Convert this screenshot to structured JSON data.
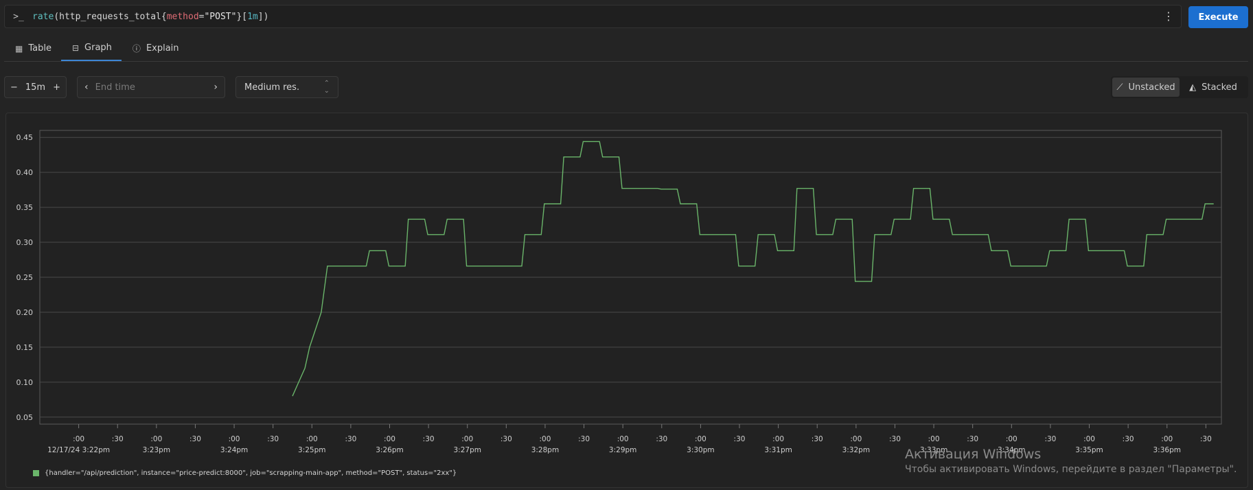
{
  "query": {
    "prompt_icon": "terminal-prompt-icon",
    "fn": "rate",
    "open1": "(",
    "metric": "http_requests_total",
    "brace_open": "{",
    "label_name": "method",
    "eq": "=",
    "label_value": "\"POST\"",
    "brace_close": "}",
    "bracket_open": "[",
    "duration": "1m",
    "bracket_close": "])",
    "menu_icon": "kebab-menu-icon"
  },
  "execute_label": "Execute",
  "tabs": [
    {
      "label": "Table",
      "icon": "table-icon"
    },
    {
      "label": "Graph",
      "icon": "graph-icon",
      "active": true
    },
    {
      "label": "Explain",
      "icon": "info-icon"
    }
  ],
  "range": {
    "minus": "−",
    "value": "15m",
    "plus": "+"
  },
  "endtime": {
    "placeholder": "End time",
    "prev": "‹",
    "next": "›"
  },
  "resolution": {
    "value": "Medium res."
  },
  "stack_modes": [
    {
      "label": "Unstacked",
      "icon": "unstacked-chart-icon",
      "active": true
    },
    {
      "label": "Stacked",
      "icon": "stacked-chart-icon",
      "active": false
    }
  ],
  "chart_data": {
    "type": "line",
    "ylim": [
      0.04,
      0.46
    ],
    "y_ticks": [
      0.05,
      0.1,
      0.15,
      0.2,
      0.25,
      0.3,
      0.35,
      0.4,
      0.45
    ],
    "y_tick_labels": [
      "0.05",
      "0.10",
      "0.15",
      "0.20",
      "0.25",
      "0.30",
      "0.35",
      "0.40",
      "0.45"
    ],
    "x_range_minutes": [
      -0.5,
      14.7
    ],
    "x_ticks": [
      {
        "m": 0.0,
        "top": ":00",
        "bottom": "12/17/24 3:22pm"
      },
      {
        "m": 0.5,
        "top": ":30",
        "bottom": ""
      },
      {
        "m": 1.0,
        "top": ":00",
        "bottom": "3:23pm"
      },
      {
        "m": 1.5,
        "top": ":30",
        "bottom": ""
      },
      {
        "m": 2.0,
        "top": ":00",
        "bottom": "3:24pm"
      },
      {
        "m": 2.5,
        "top": ":30",
        "bottom": ""
      },
      {
        "m": 3.0,
        "top": ":00",
        "bottom": "3:25pm"
      },
      {
        "m": 3.5,
        "top": ":30",
        "bottom": ""
      },
      {
        "m": 4.0,
        "top": ":00",
        "bottom": "3:26pm"
      },
      {
        "m": 4.5,
        "top": ":30",
        "bottom": ""
      },
      {
        "m": 5.0,
        "top": ":00",
        "bottom": "3:27pm"
      },
      {
        "m": 5.5,
        "top": ":30",
        "bottom": ""
      },
      {
        "m": 6.0,
        "top": ":00",
        "bottom": "3:28pm"
      },
      {
        "m": 6.5,
        "top": ":30",
        "bottom": ""
      },
      {
        "m": 7.0,
        "top": ":00",
        "bottom": "3:29pm"
      },
      {
        "m": 7.5,
        "top": ":30",
        "bottom": ""
      },
      {
        "m": 8.0,
        "top": ":00",
        "bottom": "3:30pm"
      },
      {
        "m": 8.5,
        "top": ":30",
        "bottom": ""
      },
      {
        "m": 9.0,
        "top": ":00",
        "bottom": "3:31pm"
      },
      {
        "m": 9.5,
        "top": ":30",
        "bottom": ""
      },
      {
        "m": 10.0,
        "top": ":00",
        "bottom": "3:32pm"
      },
      {
        "m": 10.5,
        "top": ":30",
        "bottom": ""
      },
      {
        "m": 11.0,
        "top": ":00",
        "bottom": "3:33pm"
      },
      {
        "m": 11.5,
        "top": ":30",
        "bottom": ""
      },
      {
        "m": 12.0,
        "top": ":00",
        "bottom": "3:34pm"
      },
      {
        "m": 12.5,
        "top": ":30",
        "bottom": ""
      },
      {
        "m": 13.0,
        "top": ":00",
        "bottom": "3:35pm"
      },
      {
        "m": 13.5,
        "top": ":30",
        "bottom": ""
      },
      {
        "m": 14.0,
        "top": ":00",
        "bottom": "3:36pm"
      },
      {
        "m": 14.5,
        "top": ":30",
        "bottom": ""
      }
    ],
    "series": [
      {
        "name": "{handler=\"/api/prediction\", instance=\"price-predict:8000\", job=\"scrapping-main-app\", method=\"POST\", status=\"2xx\"}",
        "color": "#6ab56a",
        "points": [
          [
            2.75,
            0.08
          ],
          [
            2.83,
            0.1
          ],
          [
            2.91,
            0.12
          ],
          [
            2.97,
            0.15
          ],
          [
            3.12,
            0.2
          ],
          [
            3.2,
            0.266
          ],
          [
            3.7,
            0.266
          ],
          [
            3.74,
            0.288
          ],
          [
            3.95,
            0.288
          ],
          [
            3.99,
            0.266
          ],
          [
            4.2,
            0.266
          ],
          [
            4.24,
            0.333
          ],
          [
            4.45,
            0.333
          ],
          [
            4.49,
            0.311
          ],
          [
            4.7,
            0.311
          ],
          [
            4.74,
            0.333
          ],
          [
            4.95,
            0.333
          ],
          [
            4.99,
            0.266
          ],
          [
            5.7,
            0.266
          ],
          [
            5.74,
            0.311
          ],
          [
            5.95,
            0.311
          ],
          [
            5.99,
            0.355
          ],
          [
            6.2,
            0.355
          ],
          [
            6.24,
            0.422
          ],
          [
            6.45,
            0.422
          ],
          [
            6.49,
            0.444
          ],
          [
            6.7,
            0.444
          ],
          [
            6.74,
            0.422
          ],
          [
            6.95,
            0.422
          ],
          [
            6.99,
            0.377
          ],
          [
            7.45,
            0.377
          ],
          [
            7.49,
            0.376
          ],
          [
            7.7,
            0.376
          ],
          [
            7.74,
            0.355
          ],
          [
            7.95,
            0.355
          ],
          [
            7.99,
            0.311
          ],
          [
            8.45,
            0.311
          ],
          [
            8.49,
            0.266
          ],
          [
            8.7,
            0.266
          ],
          [
            8.74,
            0.311
          ],
          [
            8.95,
            0.311
          ],
          [
            8.99,
            0.288
          ],
          [
            9.2,
            0.288
          ],
          [
            9.24,
            0.377
          ],
          [
            9.45,
            0.377
          ],
          [
            9.49,
            0.311
          ],
          [
            9.7,
            0.311
          ],
          [
            9.74,
            0.333
          ],
          [
            9.95,
            0.333
          ],
          [
            9.99,
            0.244
          ],
          [
            10.2,
            0.244
          ],
          [
            10.24,
            0.311
          ],
          [
            10.45,
            0.311
          ],
          [
            10.49,
            0.333
          ],
          [
            10.7,
            0.333
          ],
          [
            10.74,
            0.377
          ],
          [
            10.95,
            0.377
          ],
          [
            10.99,
            0.333
          ],
          [
            11.2,
            0.333
          ],
          [
            11.24,
            0.311
          ],
          [
            11.7,
            0.311
          ],
          [
            11.74,
            0.288
          ],
          [
            11.95,
            0.288
          ],
          [
            11.99,
            0.266
          ],
          [
            12.45,
            0.266
          ],
          [
            12.49,
            0.288
          ],
          [
            12.7,
            0.288
          ],
          [
            12.74,
            0.333
          ],
          [
            12.95,
            0.333
          ],
          [
            12.99,
            0.288
          ],
          [
            13.45,
            0.288
          ],
          [
            13.49,
            0.266
          ],
          [
            13.7,
            0.266
          ],
          [
            13.74,
            0.311
          ],
          [
            13.95,
            0.311
          ],
          [
            13.99,
            0.333
          ],
          [
            14.45,
            0.333
          ],
          [
            14.49,
            0.355
          ],
          [
            14.6,
            0.355
          ]
        ]
      }
    ],
    "legend": "bottom-left",
    "grid": true
  },
  "watermark": {
    "title": "Активация Windows",
    "subtitle": "Чтобы активировать Windows, перейдите в раздел \"Параметры\"."
  }
}
